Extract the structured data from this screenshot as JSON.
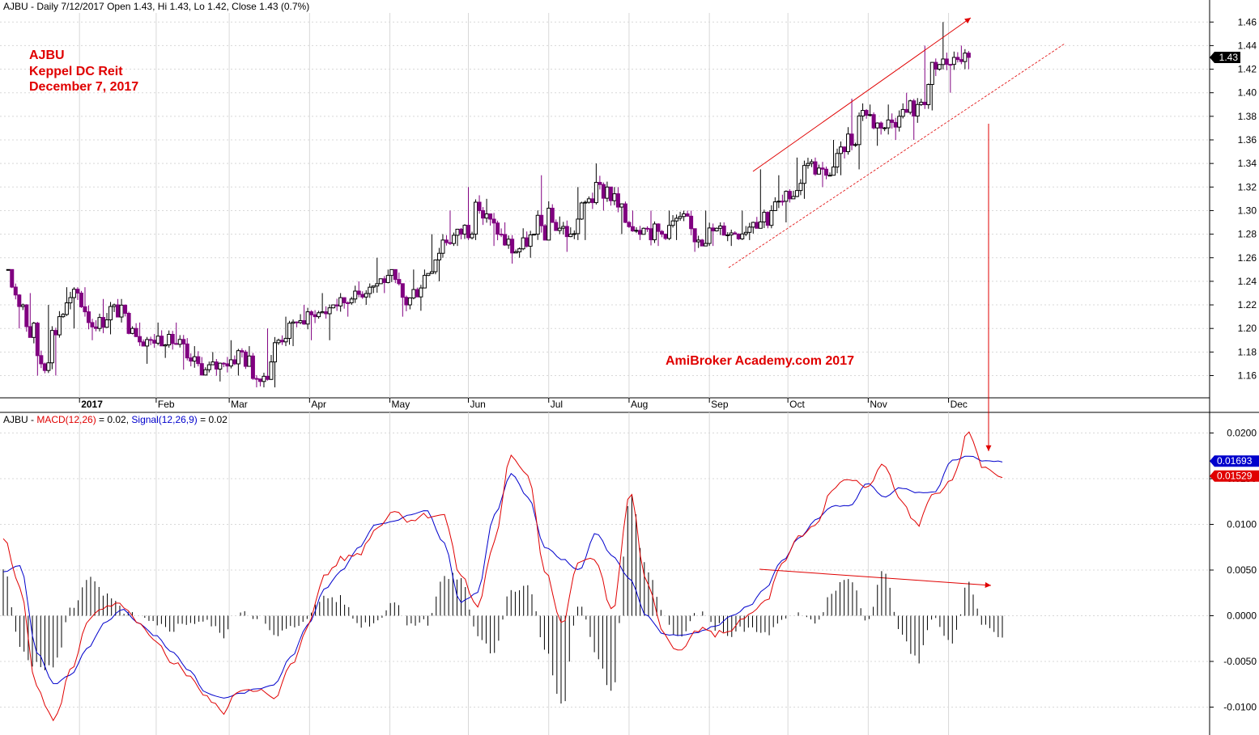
{
  "header": {
    "price_title": "AJBU - Daily 7/12/2017 Open 1.43, Hi 1.43, Lo 1.42, Close 1.43 (0.7%)",
    "macd_prefix": "AJBU - ",
    "macd_label": "MACD(12,26)",
    "macd_value": " = 0.02, ",
    "signal_label": "Signal(12,26,9)",
    "signal_value": " = 0.02"
  },
  "annotation": {
    "line1": "AJBU",
    "line2": "Keppel DC Reit",
    "line3": "December 7, 2017",
    "watermark": "AmiBroker Academy.com  2017"
  },
  "colors": {
    "bull": "#000000",
    "bear": "#800080",
    "macd": "#e00000",
    "signal": "#0000cc",
    "histogram": "#000000",
    "annotation": "#e00000",
    "grid": "#d8d8d8"
  },
  "chart_data": [
    {
      "type": "candlestick",
      "panel": "price",
      "ylim": [
        1.145,
        1.47
      ],
      "y_ticks": [
        "1.16",
        "1.18",
        "1.20",
        "1.22",
        "1.24",
        "1.26",
        "1.28",
        "1.30",
        "1.32",
        "1.34",
        "1.36",
        "1.38",
        "1.40",
        "1.42",
        "1.44",
        "1.46"
      ],
      "x_labels": [
        {
          "label": "2017",
          "week": 4
        },
        {
          "label": "Feb",
          "week": 8.2
        },
        {
          "label": "Mar",
          "week": 12.2
        },
        {
          "label": "Apr",
          "week": 16.6
        },
        {
          "label": "May",
          "week": 21
        },
        {
          "label": "Jun",
          "week": 25.3
        },
        {
          "label": "Jul",
          "week": 29.7
        },
        {
          "label": "Aug",
          "week": 34.1
        },
        {
          "label": "Sep",
          "week": 38.5
        },
        {
          "label": "Oct",
          "week": 42.8
        },
        {
          "label": "Nov",
          "week": 47.2
        },
        {
          "label": "Dec",
          "week": 51.6
        }
      ],
      "last_price": "1.43",
      "series_weekly": [
        {
          "o": 1.25,
          "h": 1.25,
          "l": 1.2,
          "c": 1.22
        },
        {
          "o": 1.22,
          "h": 1.23,
          "l": 1.16,
          "c": 1.17
        },
        {
          "o": 1.17,
          "h": 1.22,
          "l": 1.16,
          "c": 1.21
        },
        {
          "o": 1.21,
          "h": 1.235,
          "l": 1.2,
          "c": 1.23
        },
        {
          "o": 1.23,
          "h": 1.235,
          "l": 1.19,
          "c": 1.2
        },
        {
          "o": 1.2,
          "h": 1.225,
          "l": 1.195,
          "c": 1.22
        },
        {
          "o": 1.22,
          "h": 1.225,
          "l": 1.195,
          "c": 1.2
        },
        {
          "o": 1.2,
          "h": 1.205,
          "l": 1.17,
          "c": 1.19
        },
        {
          "o": 1.19,
          "h": 1.205,
          "l": 1.175,
          "c": 1.195
        },
        {
          "o": 1.195,
          "h": 1.205,
          "l": 1.165,
          "c": 1.175
        },
        {
          "o": 1.175,
          "h": 1.185,
          "l": 1.16,
          "c": 1.165
        },
        {
          "o": 1.165,
          "h": 1.18,
          "l": 1.155,
          "c": 1.17
        },
        {
          "o": 1.17,
          "h": 1.19,
          "l": 1.16,
          "c": 1.18
        },
        {
          "o": 1.18,
          "h": 1.185,
          "l": 1.15,
          "c": 1.155
        },
        {
          "o": 1.155,
          "h": 1.2,
          "l": 1.15,
          "c": 1.19
        },
        {
          "o": 1.19,
          "h": 1.21,
          "l": 1.185,
          "c": 1.205
        },
        {
          "o": 1.205,
          "h": 1.22,
          "l": 1.19,
          "c": 1.21
        },
        {
          "o": 1.21,
          "h": 1.23,
          "l": 1.19,
          "c": 1.22
        },
        {
          "o": 1.22,
          "h": 1.23,
          "l": 1.21,
          "c": 1.225
        },
        {
          "o": 1.225,
          "h": 1.24,
          "l": 1.22,
          "c": 1.235
        },
        {
          "o": 1.235,
          "h": 1.26,
          "l": 1.23,
          "c": 1.245
        },
        {
          "o": 1.245,
          "h": 1.25,
          "l": 1.21,
          "c": 1.22
        },
        {
          "o": 1.22,
          "h": 1.25,
          "l": 1.215,
          "c": 1.245
        },
        {
          "o": 1.245,
          "h": 1.28,
          "l": 1.24,
          "c": 1.275
        },
        {
          "o": 1.275,
          "h": 1.3,
          "l": 1.27,
          "c": 1.28
        },
        {
          "o": 1.28,
          "h": 1.32,
          "l": 1.275,
          "c": 1.3
        },
        {
          "o": 1.3,
          "h": 1.31,
          "l": 1.27,
          "c": 1.28
        },
        {
          "o": 1.28,
          "h": 1.29,
          "l": 1.255,
          "c": 1.265
        },
        {
          "o": 1.265,
          "h": 1.285,
          "l": 1.26,
          "c": 1.28
        },
        {
          "o": 1.28,
          "h": 1.33,
          "l": 1.275,
          "c": 1.29
        },
        {
          "o": 1.29,
          "h": 1.295,
          "l": 1.265,
          "c": 1.28
        },
        {
          "o": 1.28,
          "h": 1.32,
          "l": 1.275,
          "c": 1.31
        },
        {
          "o": 1.31,
          "h": 1.34,
          "l": 1.3,
          "c": 1.32
        },
        {
          "o": 1.32,
          "h": 1.32,
          "l": 1.28,
          "c": 1.29
        },
        {
          "o": 1.29,
          "h": 1.3,
          "l": 1.275,
          "c": 1.285
        },
        {
          "o": 1.285,
          "h": 1.3,
          "l": 1.27,
          "c": 1.28
        },
        {
          "o": 1.28,
          "h": 1.3,
          "l": 1.275,
          "c": 1.295
        },
        {
          "o": 1.295,
          "h": 1.3,
          "l": 1.265,
          "c": 1.275
        },
        {
          "o": 1.275,
          "h": 1.3,
          "l": 1.27,
          "c": 1.285
        },
        {
          "o": 1.285,
          "h": 1.29,
          "l": 1.27,
          "c": 1.28
        },
        {
          "o": 1.28,
          "h": 1.3,
          "l": 1.275,
          "c": 1.29
        },
        {
          "o": 1.29,
          "h": 1.335,
          "l": 1.285,
          "c": 1.3
        },
        {
          "o": 1.3,
          "h": 1.33,
          "l": 1.29,
          "c": 1.31
        },
        {
          "o": 1.31,
          "h": 1.345,
          "l": 1.31,
          "c": 1.34
        },
        {
          "o": 1.34,
          "h": 1.345,
          "l": 1.32,
          "c": 1.33
        },
        {
          "o": 1.33,
          "h": 1.36,
          "l": 1.33,
          "c": 1.35
        },
        {
          "o": 1.35,
          "h": 1.395,
          "l": 1.335,
          "c": 1.385
        },
        {
          "o": 1.385,
          "h": 1.39,
          "l": 1.355,
          "c": 1.37
        },
        {
          "o": 1.37,
          "h": 1.39,
          "l": 1.36,
          "c": 1.38
        },
        {
          "o": 1.38,
          "h": 1.4,
          "l": 1.36,
          "c": 1.39
        },
        {
          "o": 1.39,
          "h": 1.44,
          "l": 1.385,
          "c": 1.42
        },
        {
          "o": 1.42,
          "h": 1.46,
          "l": 1.4,
          "c": 1.43
        },
        {
          "o": 1.43,
          "h": 1.44,
          "l": 1.42,
          "c": 1.43
        }
      ]
    },
    {
      "type": "macd",
      "panel": "indicator",
      "ylim": [
        -0.0128,
        0.0222
      ],
      "y_ticks": [
        "0.0200",
        "0.0150",
        "0.0100",
        "0.0050",
        "0.0000",
        "-0.0050",
        "-0.0100"
      ],
      "macd_last": "0.01529",
      "signal_last": "0.01693",
      "macd_weekly": [
        0.0085,
        0.003,
        -0.008,
        -0.0115,
        -0.006,
        -0.0005,
        0.0008,
        0.0012,
        -0.001,
        -0.003,
        -0.005,
        -0.0065,
        -0.009,
        -0.0105,
        -0.008,
        -0.008,
        -0.0092,
        -0.0055,
        -0.001,
        0.0045,
        0.0062,
        0.0068,
        0.0095,
        0.0115,
        0.0105,
        0.011,
        0.011,
        0.0045,
        0.001,
        0.008,
        0.0175,
        0.0155,
        0.005,
        -0.001,
        0.006,
        0.006,
        0.0005,
        0.0135,
        0.0035,
        -0.002,
        -0.004,
        -0.0015,
        -0.002,
        -0.0015,
        0.0,
        0.0015,
        0.0055,
        0.0085,
        0.01,
        0.014,
        0.015,
        0.014,
        0.0165,
        0.0125,
        0.01,
        0.0135,
        0.0145,
        0.02,
        0.016,
        0.0153
      ],
      "signal_weekly": [
        0.0048,
        0.0055,
        -0.004,
        -0.0075,
        -0.0065,
        -0.0035,
        -0.0008,
        0.0007,
        -0.0008,
        -0.0022,
        -0.004,
        -0.006,
        -0.0085,
        -0.009,
        -0.0085,
        -0.008,
        -0.0075,
        -0.0045,
        -0.001,
        0.003,
        0.005,
        0.0075,
        0.01,
        0.0103,
        0.011,
        0.0115,
        0.008,
        0.0015,
        0.0025,
        0.011,
        0.0155,
        0.013,
        0.0075,
        0.0062,
        0.005,
        0.009,
        0.0065,
        0.004,
        0.0,
        -0.002,
        -0.0022,
        -0.0018,
        -0.0012,
        0.0,
        0.001,
        0.003,
        0.006,
        0.0085,
        0.0105,
        0.012,
        0.012,
        0.0145,
        0.013,
        0.014,
        0.0135,
        0.0135,
        0.017,
        0.0175,
        0.0169,
        0.0169
      ]
    }
  ]
}
